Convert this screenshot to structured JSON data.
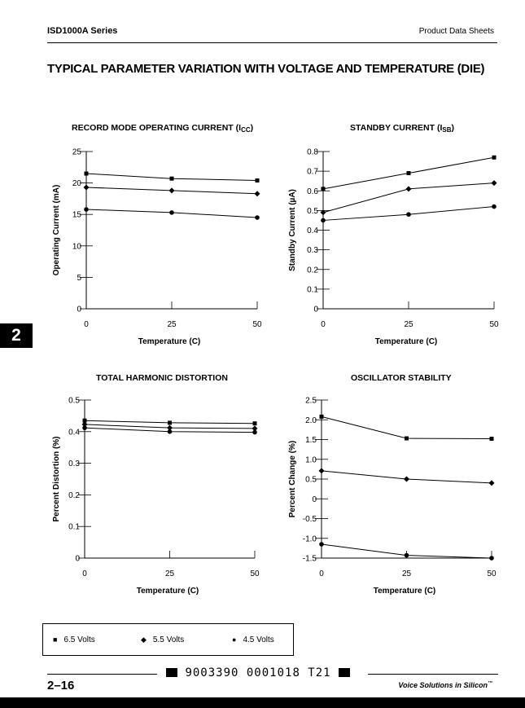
{
  "header": {
    "series_name": "ISD1000A Series",
    "section": "Product Data Sheets"
  },
  "page_title": "TYPICAL PARAMETER VARIATION WITH VOLTAGE AND TEMPERATURE (DIE)",
  "side_tab": "2",
  "legend": {
    "items": [
      {
        "symbol": "■",
        "label": "6.5 Volts"
      },
      {
        "symbol": "◆",
        "label": "5.5 Volts"
      },
      {
        "symbol": "●",
        "label": "4.5 Volts"
      }
    ]
  },
  "footer": {
    "page_number": "2–16",
    "code": "9003390 0001018 T21",
    "tagline": "Voice Solutions in Silicon",
    "trademark": "™"
  },
  "colors": {
    "ink": "#000000"
  },
  "chart_data": [
    {
      "type": "line",
      "title": "RECORD MODE OPERATING CURRENT (I",
      "title_sub": "CC",
      "title_end": ")",
      "xlabel": "Temperature (C)",
      "ylabel": "Operating Current (mA)",
      "x": [
        0,
        25,
        50
      ],
      "xlim": [
        0,
        50
      ],
      "ylim": [
        0,
        25
      ],
      "xticks": [
        0,
        25,
        50
      ],
      "yticks": [
        0,
        5,
        10,
        15,
        20,
        25
      ],
      "ytick_labels": [
        "0",
        "5",
        "10",
        "15",
        "20",
        "25"
      ],
      "series": [
        {
          "marker": "square",
          "values": [
            21.5,
            20.7,
            20.4
          ]
        },
        {
          "marker": "diamond",
          "values": [
            19.3,
            18.8,
            18.3
          ]
        },
        {
          "marker": "circle",
          "values": [
            15.8,
            15.3,
            14.5
          ]
        }
      ]
    },
    {
      "type": "line",
      "title": "STANDBY CURRENT (I",
      "title_sub": "SB",
      "title_end": ")",
      "xlabel": "Temperature (C)",
      "ylabel": "Standby Current (µA)",
      "x": [
        0,
        25,
        50
      ],
      "xlim": [
        0,
        50
      ],
      "ylim": [
        0,
        0.8
      ],
      "xticks": [
        0,
        25,
        50
      ],
      "yticks": [
        0,
        0.1,
        0.2,
        0.3,
        0.4,
        0.5,
        0.6,
        0.7,
        0.8
      ],
      "ytick_labels": [
        "0",
        "0.1",
        "0.2",
        "0.3",
        "0.4",
        "0.5",
        "0.6",
        "0.7",
        "0.8"
      ],
      "series": [
        {
          "marker": "square",
          "values": [
            0.61,
            0.69,
            0.77
          ]
        },
        {
          "marker": "diamond",
          "values": [
            0.49,
            0.61,
            0.64
          ]
        },
        {
          "marker": "circle",
          "values": [
            0.45,
            0.48,
            0.52
          ]
        }
      ]
    },
    {
      "type": "line",
      "title": "TOTAL HARMONIC DISTORTION",
      "xlabel": "Temperature (C)",
      "ylabel": "Percent Distortion (%)",
      "x": [
        0,
        25,
        50
      ],
      "xlim": [
        0,
        50
      ],
      "ylim": [
        0,
        0.5
      ],
      "xticks": [
        0,
        25,
        50
      ],
      "yticks": [
        0,
        0.1,
        0.2,
        0.3,
        0.4,
        0.5
      ],
      "ytick_labels": [
        "0",
        "0.1",
        "0.2",
        "0.3",
        "0.4",
        "0.5"
      ],
      "series": [
        {
          "marker": "square",
          "values": [
            0.435,
            0.428,
            0.426
          ]
        },
        {
          "marker": "diamond",
          "values": [
            0.423,
            0.412,
            0.41
          ]
        },
        {
          "marker": "circle",
          "values": [
            0.412,
            0.4,
            0.398
          ]
        }
      ]
    },
    {
      "type": "line",
      "title": "OSCILLATOR STABILITY",
      "xlabel": "Temperature (C)",
      "ylabel": "Percent Change (%)",
      "x": [
        0,
        25,
        50
      ],
      "xlim": [
        0,
        50
      ],
      "ylim": [
        -1.5,
        2.5
      ],
      "xticks": [
        0,
        25,
        50
      ],
      "yticks": [
        -1.5,
        -1.0,
        -0.5,
        0,
        0.5,
        1.0,
        1.5,
        2.0,
        2.5
      ],
      "ytick_labels": [
        "-1.5",
        "-1.0",
        "-0.5",
        "0",
        "0.5",
        "1.0",
        "1.5",
        "2.0",
        "2.5"
      ],
      "series": [
        {
          "marker": "square",
          "values": [
            2.08,
            1.53,
            1.52
          ]
        },
        {
          "marker": "diamond",
          "values": [
            0.71,
            0.5,
            0.4
          ]
        },
        {
          "marker": "circle",
          "values": [
            -1.15,
            -1.43,
            -1.5
          ]
        }
      ]
    }
  ]
}
